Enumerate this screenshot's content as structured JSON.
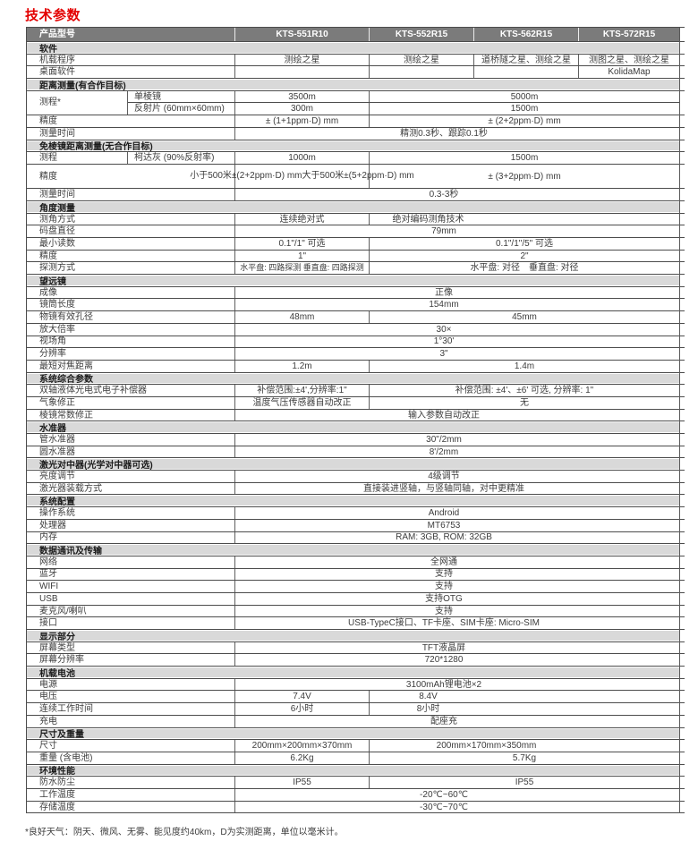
{
  "page": {
    "title": "技术参数",
    "footnote": "*良好天气：阴天、微风、无雾、能见度约40km，D为实测距离，单位以毫米计。"
  },
  "colors": {
    "accent_red": "#e30000",
    "header_bg": "#7b7b7b",
    "section_bg": "#d9d9d9",
    "border_dark": "#4c4c4c",
    "border_light": "#5f5f5f",
    "text": "#3c3c3c"
  },
  "models": [
    "KTS-551R10",
    "KTS-552R15",
    "KTS-562R15",
    "KTS-572R15"
  ],
  "table": {
    "rows": [
      {
        "type": "header",
        "cells": [
          {
            "w": "label",
            "t": "产品型号"
          },
          {
            "w": "v1",
            "t": "KTS-551R10"
          },
          {
            "w": "v2",
            "t": "KTS-552R15"
          },
          {
            "w": "v3",
            "t": "KTS-562R15"
          },
          {
            "w": "v4",
            "t": "KTS-572R15"
          }
        ]
      },
      {
        "type": "section",
        "t": "软件"
      },
      {
        "type": "data",
        "cells": [
          {
            "w": "label",
            "t": "机载程序",
            "br": 1
          },
          {
            "w": "v1",
            "t": "测绘之星",
            "br": 1
          },
          {
            "w": "v2",
            "t": "测绘之星",
            "br": 1
          },
          {
            "w": "v3",
            "t": "道桥隧之星、测绘之星",
            "br": 1
          },
          {
            "w": "v4",
            "t": "测图之星、测绘之星"
          }
        ]
      },
      {
        "type": "data",
        "cells": [
          {
            "w": "label",
            "t": "桌面软件",
            "br": 1
          },
          {
            "w": "v1",
            "t": "",
            "br": 1
          },
          {
            "w": "v2",
            "t": "",
            "br": 1
          },
          {
            "w": "v3",
            "t": "",
            "br": 1
          },
          {
            "w": "v4",
            "t": "KolidaMap"
          }
        ]
      },
      {
        "type": "section",
        "t": "距离测量(有合作目标)"
      },
      {
        "type": "group",
        "label": "测程*",
        "sub": [
          [
            {
              "w": "l2",
              "t": "单棱镜",
              "br": 1
            },
            {
              "w": "v1",
              "t": "3500m",
              "br": 1
            },
            {
              "w": "v234",
              "t": "5000m"
            }
          ],
          [
            {
              "w": "l2",
              "t": "反射片 (60mm×60mm)",
              "br": 1
            },
            {
              "w": "v1",
              "t": "300m",
              "br": 1
            },
            {
              "w": "v234",
              "t": "1500m"
            }
          ]
        ]
      },
      {
        "type": "data",
        "cells": [
          {
            "w": "label",
            "t": "精度",
            "br": 1
          },
          {
            "w": "v1",
            "t": "± (1+1ppm·D) mm",
            "br": 1
          },
          {
            "w": "v234",
            "t": "± (2+2ppm·D) mm"
          }
        ]
      },
      {
        "type": "data",
        "cells": [
          {
            "w": "label",
            "t": "测量时间",
            "br": 1
          },
          {
            "w": "v1234",
            "t": "精测0.3秒、跟踪0.1秒"
          }
        ]
      },
      {
        "type": "section",
        "t": "免棱镜距离测量(无合作目标)"
      },
      {
        "type": "data",
        "cells": [
          {
            "w": "l1",
            "t": "测程",
            "br": 1
          },
          {
            "w": "l2",
            "t": "柯达灰 (90%反射率)",
            "br": 1
          },
          {
            "w": "v1",
            "t": "1000m",
            "br": 1
          },
          {
            "w": "v234",
            "t": "1500m"
          }
        ]
      },
      {
        "type": "data",
        "h": 2,
        "cells": [
          {
            "w": "label",
            "t": "精度",
            "br": 1
          },
          {
            "w": "v1",
            "lines": [
              "小于500米±(2+2ppm·D) mm",
              "大于500米±(5+2ppm·D) mm"
            ],
            "br": 1
          },
          {
            "w": "v234",
            "t": "± (3+2ppm·D) mm"
          }
        ]
      },
      {
        "type": "data",
        "cells": [
          {
            "w": "label",
            "t": "测量时间",
            "br": 1
          },
          {
            "w": "v1234",
            "t": "0.3-3秒"
          }
        ]
      },
      {
        "type": "section",
        "t": "角度测量"
      },
      {
        "type": "data",
        "cells": [
          {
            "w": "label",
            "t": "测角方式",
            "br": 1
          },
          {
            "w": "v1",
            "t": "连续绝对式",
            "br": 1
          },
          {
            "w": "v234",
            "t": "绝对编码测角技术",
            "align": "c2"
          }
        ]
      },
      {
        "type": "data",
        "cells": [
          {
            "w": "label",
            "t": "码盘直径",
            "br": 1
          },
          {
            "w": "v1234",
            "t": "79mm"
          }
        ]
      },
      {
        "type": "data",
        "cells": [
          {
            "w": "label",
            "t": "最小读数",
            "br": 1
          },
          {
            "w": "v1",
            "t": "0.1\"/1\" 可选",
            "br": 1
          },
          {
            "w": "v234",
            "t": "0.1\"/1\"/5\" 可选"
          }
        ]
      },
      {
        "type": "data",
        "cells": [
          {
            "w": "label",
            "t": "精度",
            "br": 1
          },
          {
            "w": "v1",
            "t": "1\"",
            "br": 1
          },
          {
            "w": "v234",
            "t": "2\""
          }
        ]
      },
      {
        "type": "data",
        "cells": [
          {
            "w": "label",
            "t": "探测方式",
            "br": 1
          },
          {
            "w": "v1",
            "t": "水平盘: 四路探测 垂直盘: 四路探测",
            "br": 1,
            "small": 1
          },
          {
            "w": "v234",
            "t": "水平盘: 对径　垂直盘: 对径"
          }
        ]
      },
      {
        "type": "section",
        "t": "望远镜"
      },
      {
        "type": "data",
        "cells": [
          {
            "w": "label",
            "t": "成像",
            "br": 1
          },
          {
            "w": "v1234",
            "t": "正像"
          }
        ]
      },
      {
        "type": "data",
        "cells": [
          {
            "w": "label",
            "t": "镜筒长度",
            "br": 1
          },
          {
            "w": "v1234",
            "t": "154mm"
          }
        ]
      },
      {
        "type": "data",
        "cells": [
          {
            "w": "label",
            "t": "物镜有效孔径",
            "br": 1
          },
          {
            "w": "v1",
            "t": "48mm",
            "br": 1
          },
          {
            "w": "v234",
            "t": "45mm"
          }
        ]
      },
      {
        "type": "data",
        "cells": [
          {
            "w": "label",
            "t": "放大倍率",
            "br": 1
          },
          {
            "w": "v1234",
            "t": "30×"
          }
        ]
      },
      {
        "type": "data",
        "cells": [
          {
            "w": "label",
            "t": "视场角",
            "br": 1
          },
          {
            "w": "v1234",
            "t": "1°30'"
          }
        ]
      },
      {
        "type": "data",
        "cells": [
          {
            "w": "label",
            "t": "分辨率",
            "br": 1
          },
          {
            "w": "v1234",
            "t": "3\""
          }
        ]
      },
      {
        "type": "data",
        "cells": [
          {
            "w": "label",
            "t": "最短对焦距离",
            "br": 1
          },
          {
            "w": "v1",
            "t": "1.2m",
            "br": 1
          },
          {
            "w": "v234",
            "t": "1.4m"
          }
        ]
      },
      {
        "type": "section",
        "t": "系统综合参数"
      },
      {
        "type": "data",
        "cells": [
          {
            "w": "label",
            "t": "双轴液体光电式电子补偿器",
            "br": 1
          },
          {
            "w": "v1",
            "t": "补偿范围:±4',分辨率:1\"",
            "br": 1
          },
          {
            "w": "v234",
            "t": "补偿范围: ±4'、±6' 可选, 分辨率: 1\""
          }
        ]
      },
      {
        "type": "data",
        "cells": [
          {
            "w": "label",
            "t": "气象修正",
            "br": 1
          },
          {
            "w": "v1",
            "t": "温度气压传感器自动改正",
            "br": 1
          },
          {
            "w": "v234",
            "t": "无"
          }
        ]
      },
      {
        "type": "data",
        "cells": [
          {
            "w": "label",
            "t": "棱镜常数修正",
            "br": 1
          },
          {
            "w": "v1234",
            "t": "输入参数自动改正"
          }
        ]
      },
      {
        "type": "section",
        "t": "水准器"
      },
      {
        "type": "data",
        "cells": [
          {
            "w": "label",
            "t": "管水准器",
            "br": 1
          },
          {
            "w": "v1234",
            "t": "30\"/2mm"
          }
        ]
      },
      {
        "type": "data",
        "cells": [
          {
            "w": "label",
            "t": "圆水准器",
            "br": 1
          },
          {
            "w": "v1234",
            "t": "8'/2mm"
          }
        ]
      },
      {
        "type": "section",
        "t": "激光对中器(光学对中器可选)"
      },
      {
        "type": "data",
        "cells": [
          {
            "w": "label",
            "t": "亮度调节",
            "br": 1
          },
          {
            "w": "v1234",
            "t": "4级调节"
          }
        ]
      },
      {
        "type": "data",
        "cells": [
          {
            "w": "label",
            "t": "激光器装载方式",
            "br": 1
          },
          {
            "w": "v1234",
            "t": "直接装进竖轴，与竖轴同轴，对中更精准"
          }
        ]
      },
      {
        "type": "section",
        "t": "系统配置"
      },
      {
        "type": "data",
        "cells": [
          {
            "w": "label",
            "t": "操作系统",
            "br": 1
          },
          {
            "w": "v1234",
            "t": "Android"
          }
        ]
      },
      {
        "type": "data",
        "cells": [
          {
            "w": "label",
            "t": "处理器",
            "br": 1
          },
          {
            "w": "v1234",
            "t": "MT6753"
          }
        ]
      },
      {
        "type": "data",
        "cells": [
          {
            "w": "label",
            "t": "内存",
            "br": 1
          },
          {
            "w": "v1234",
            "t": "RAM: 3GB, ROM: 32GB"
          }
        ]
      },
      {
        "type": "section",
        "t": "数据通讯及传输"
      },
      {
        "type": "data",
        "cells": [
          {
            "w": "label",
            "t": "网络",
            "br": 1
          },
          {
            "w": "v1234",
            "t": "全网通"
          }
        ]
      },
      {
        "type": "data",
        "cells": [
          {
            "w": "label",
            "t": "蓝牙",
            "br": 1
          },
          {
            "w": "v1234",
            "t": "支持"
          }
        ]
      },
      {
        "type": "data",
        "cells": [
          {
            "w": "label",
            "t": "WIFI",
            "br": 1
          },
          {
            "w": "v1234",
            "t": "支持"
          }
        ]
      },
      {
        "type": "data",
        "cells": [
          {
            "w": "label",
            "t": "USB",
            "br": 1
          },
          {
            "w": "v1234",
            "t": "支持OTG"
          }
        ]
      },
      {
        "type": "data",
        "cells": [
          {
            "w": "label",
            "t": "麦克风/喇叭",
            "br": 1
          },
          {
            "w": "v1234",
            "t": "支持"
          }
        ]
      },
      {
        "type": "data",
        "cells": [
          {
            "w": "label",
            "t": "接口",
            "br": 1
          },
          {
            "w": "v1234",
            "t": "USB-TypeC接口、TF卡座、SIM卡座: Micro-SIM"
          }
        ]
      },
      {
        "type": "section",
        "t": "显示部分"
      },
      {
        "type": "data",
        "cells": [
          {
            "w": "label",
            "t": "屏幕类型",
            "br": 1
          },
          {
            "w": "v1234",
            "t": "TFT液晶屏"
          }
        ]
      },
      {
        "type": "data",
        "cells": [
          {
            "w": "label",
            "t": "屏幕分辨率",
            "br": 1
          },
          {
            "w": "v1234",
            "t": "720*1280"
          }
        ]
      },
      {
        "type": "section",
        "t": "机载电池"
      },
      {
        "type": "data",
        "cells": [
          {
            "w": "label",
            "t": "电源",
            "br": 1
          },
          {
            "w": "v1234",
            "t": "3100mAh锂电池×2"
          }
        ]
      },
      {
        "type": "data",
        "cells": [
          {
            "w": "label",
            "t": "电压",
            "br": 1
          },
          {
            "w": "v1",
            "t": "7.4V",
            "br": 1
          },
          {
            "w": "v234",
            "t": "8.4V",
            "align": "c2"
          }
        ]
      },
      {
        "type": "data",
        "cells": [
          {
            "w": "label",
            "t": "连续工作时间",
            "br": 1
          },
          {
            "w": "v1",
            "t": "6小时",
            "br": 1
          },
          {
            "w": "v234",
            "t": "8小时",
            "align": "c2"
          }
        ]
      },
      {
        "type": "data",
        "cells": [
          {
            "w": "label",
            "t": "充电",
            "br": 1
          },
          {
            "w": "v1234",
            "t": "配座充"
          }
        ]
      },
      {
        "type": "section",
        "t": "尺寸及重量"
      },
      {
        "type": "data",
        "cells": [
          {
            "w": "label",
            "t": "尺寸",
            "br": 1
          },
          {
            "w": "v1",
            "t": "200mm×200mm×370mm",
            "br": 1
          },
          {
            "w": "v234",
            "t": "200mm×170mm×350mm",
            "align": "c23"
          }
        ]
      },
      {
        "type": "data",
        "cells": [
          {
            "w": "label",
            "t": "重量 (含电池)",
            "br": 1
          },
          {
            "w": "v1",
            "t": "6.2Kg",
            "br": 1
          },
          {
            "w": "v234",
            "t": "5.7Kg"
          }
        ]
      },
      {
        "type": "section",
        "t": "环境性能"
      },
      {
        "type": "data",
        "cells": [
          {
            "w": "label",
            "t": "防水防尘",
            "br": 1
          },
          {
            "w": "v1",
            "t": "IP55",
            "br": 1
          },
          {
            "w": "v234",
            "t": "IP55"
          }
        ]
      },
      {
        "type": "data",
        "cells": [
          {
            "w": "label",
            "t": "工作温度",
            "br": 1
          },
          {
            "w": "v1234",
            "t": "-20℃~60℃"
          }
        ]
      },
      {
        "type": "data",
        "cells": [
          {
            "w": "label",
            "t": "存储温度",
            "br": 1
          },
          {
            "w": "v1234",
            "t": "-30℃~70℃"
          }
        ]
      }
    ]
  }
}
